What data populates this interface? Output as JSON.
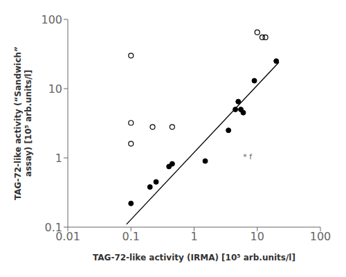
{
  "chart_data": {
    "type": "scatter",
    "xlabel": "TAG-72-like activity (IRMA) [10⁵ arb.units/l]",
    "ylabel": "TAG-72-like activity (“Sandwich”\nassay) [10⁵ arb.units/l]",
    "log": true,
    "grid": false,
    "xlim": [
      0.01,
      100
    ],
    "ylim": [
      0.1,
      100
    ],
    "xticks": [
      0.01,
      0.1,
      1,
      10,
      100
    ],
    "yticks": [
      0.1,
      1,
      10,
      100
    ],
    "series": [
      {
        "type": "line",
        "color": "#000000",
        "x": [
          0.085,
          22.0
        ],
        "y": [
          0.11,
          24.0
        ]
      },
      {
        "type": "scatter",
        "marker": "filled",
        "color": "#000000",
        "x": [
          0.1,
          0.2,
          0.25,
          0.4,
          0.45,
          1.5,
          3.5,
          4.5,
          5.0,
          5.5,
          6.0,
          9.0,
          20.0
        ],
        "y": [
          0.22,
          0.38,
          0.45,
          0.75,
          0.82,
          0.9,
          2.5,
          5.0,
          6.5,
          5.0,
          4.5,
          13.0,
          25.0
        ]
      },
      {
        "type": "scatter",
        "marker": "open",
        "color": "#000000",
        "x": [
          0.1,
          0.1,
          0.1,
          0.22,
          0.45,
          10.0,
          12.0,
          13.5
        ],
        "y": [
          30.0,
          3.2,
          1.6,
          2.8,
          2.8,
          65.0,
          55.0,
          55.0
        ]
      }
    ],
    "annotations": [
      {
        "text": "* f",
        "x": 7.0,
        "y": 0.85
      }
    ]
  }
}
